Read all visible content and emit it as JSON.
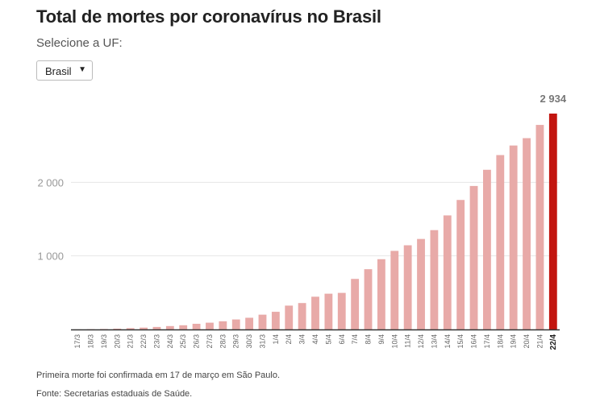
{
  "title": "Total de mortes por coronavírus no Brasil",
  "uf_selector": {
    "label": "Selecione a UF:",
    "selected": "Brasil"
  },
  "notes": {
    "first": "Primeira morte foi confirmada em 17 de março em São Paulo.",
    "source": "Fonte: Secretarias estaduais de Saúde."
  },
  "colors": {
    "bar": "#e8aaa8",
    "highlight": "#c2150f",
    "grid": "#e6e6e6",
    "axis": "#333333"
  },
  "chart_data": {
    "type": "bar",
    "categories": [
      "17/3",
      "18/3",
      "19/3",
      "20/3",
      "21/3",
      "22/3",
      "23/3",
      "24/3",
      "25/3",
      "26/3",
      "27/3",
      "28/3",
      "29/3",
      "30/3",
      "31/3",
      "1/4",
      "2/4",
      "3/4",
      "4/4",
      "5/4",
      "6/4",
      "7/4",
      "8/4",
      "9/4",
      "10/4",
      "11/4",
      "12/4",
      "13/4",
      "14/4",
      "15/4",
      "16/4",
      "17/4",
      "18/4",
      "19/4",
      "20/4",
      "21/4",
      "22/4"
    ],
    "values": [
      1,
      3,
      6,
      11,
      18,
      25,
      34,
      46,
      57,
      77,
      92,
      111,
      136,
      159,
      201,
      240,
      324,
      359,
      445,
      486,
      497,
      687,
      819,
      955,
      1068,
      1144,
      1230,
      1350,
      1550,
      1760,
      1950,
      2170,
      2370,
      2500,
      2600,
      2780,
      2934
    ],
    "highlight_index": 36,
    "highlight_label": "2 934",
    "yticks": [
      1000,
      2000
    ],
    "ytick_labels": [
      "1 000",
      "2 000"
    ],
    "ylim": [
      0,
      2934
    ],
    "grid": true
  }
}
